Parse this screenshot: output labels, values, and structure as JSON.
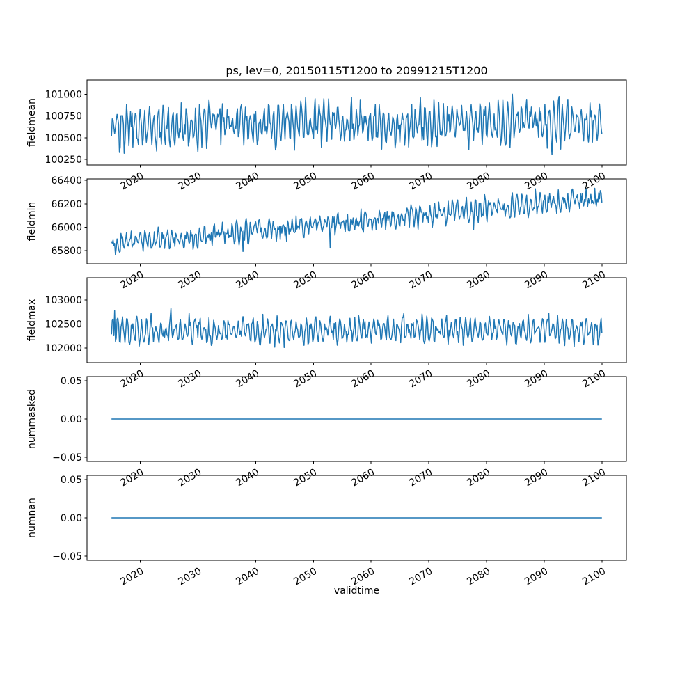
{
  "figure": {
    "title": "ps, lev=0, 20150115T1200 to 20991215T1200",
    "xlabel": "validtime",
    "line_color": "#1f77b4",
    "background": "#ffffff"
  },
  "chart_data": [
    {
      "type": "line",
      "ylabel": "fieldmean",
      "x_start": 2015.04,
      "x_end": 2099.96,
      "xlim": [
        2010.8,
        2104.2
      ],
      "xticks": [
        2020,
        2030,
        2040,
        2050,
        2060,
        2070,
        2080,
        2090,
        2100
      ],
      "xtick_labels": [
        "2020",
        "2030",
        "2040",
        "2050",
        "2060",
        "2070",
        "2080",
        "2090",
        "2100"
      ],
      "ylim": [
        100185,
        101165
      ],
      "yticks": [
        100250,
        100500,
        100750,
        101000
      ],
      "ytick_labels": [
        "100250",
        "100500",
        "100750",
        "101000"
      ],
      "grid": false,
      "legend": "none",
      "series": {
        "name": "fieldmean",
        "description": "stationary noisy series oscillating roughly 100250-101000, occasional dips to ~100230 and peaks to ~101120",
        "gen": {
          "kind": "noisy",
          "n": 620,
          "base": 100630,
          "trend": 40,
          "seasonal_amp": 215,
          "seasonal_period": 5.8,
          "noise_amp": 135,
          "spike_prob": 0.012,
          "spike_amp": 330,
          "spike_up_frac": 0.5,
          "clamp": [
            100200,
            101150
          ],
          "seed": 11
        }
      }
    },
    {
      "type": "line",
      "ylabel": "fieldmin",
      "x_start": 2015.04,
      "x_end": 2099.96,
      "xlim": [
        2010.8,
        2104.2
      ],
      "xticks": [
        2020,
        2030,
        2040,
        2050,
        2060,
        2070,
        2080,
        2090,
        2100
      ],
      "xtick_labels": [
        "2020",
        "2030",
        "2040",
        "2050",
        "2060",
        "2070",
        "2080",
        "2090",
        "2100"
      ],
      "ylim": [
        65687,
        66413
      ],
      "yticks": [
        65800,
        66000,
        66200,
        66400
      ],
      "ytick_labels": [
        "65800",
        "66000",
        "66200",
        "66400"
      ],
      "grid": false,
      "legend": "none",
      "series": {
        "name": "fieldmin",
        "description": "noisy series with steady upward trend from ~65850 in 2015 to ~66280 in 2100, peaks near 66400 at the end",
        "gen": {
          "kind": "noisy",
          "n": 620,
          "base": 65850,
          "trend": 400,
          "seasonal_amp": 70,
          "seasonal_period": 5.8,
          "noise_amp": 62,
          "spike_prob": 0.01,
          "spike_amp": 160,
          "spike_up_frac": 0.35,
          "clamp": [
            65700,
            66400
          ],
          "seed": 22
        }
      }
    },
    {
      "type": "line",
      "ylabel": "fieldmax",
      "x_start": 2015.04,
      "x_end": 2099.96,
      "xlim": [
        2010.8,
        2104.2
      ],
      "xticks": [
        2020,
        2030,
        2040,
        2050,
        2060,
        2070,
        2080,
        2090,
        2100
      ],
      "xtick_labels": [
        "2020",
        "2030",
        "2040",
        "2050",
        "2060",
        "2070",
        "2080",
        "2090",
        "2100"
      ],
      "ylim": [
        101700,
        103460
      ],
      "yticks": [
        102000,
        102500,
        103000
      ],
      "ytick_labels": [
        "102000",
        "102500",
        "103000"
      ],
      "grid": false,
      "legend": "none",
      "series": {
        "name": "fieldmax",
        "description": "stationary noisy series oscillating roughly 102000-102800 with occasional upward spikes to ~103350",
        "gen": {
          "kind": "noisy",
          "n": 620,
          "base": 102360,
          "trend": 20,
          "seasonal_amp": 235,
          "seasonal_period": 6.1,
          "noise_amp": 140,
          "spike_prob": 0.012,
          "spike_amp": 480,
          "spike_up_frac": 0.85,
          "clamp": [
            101720,
            103440
          ],
          "seed": 33
        }
      }
    },
    {
      "type": "line",
      "ylabel": "nummasked",
      "x_start": 2015.04,
      "x_end": 2099.96,
      "xlim": [
        2010.8,
        2104.2
      ],
      "xticks": [
        2020,
        2030,
        2040,
        2050,
        2060,
        2070,
        2080,
        2090,
        2100
      ],
      "xtick_labels": [
        "2020",
        "2030",
        "2040",
        "2050",
        "2060",
        "2070",
        "2080",
        "2090",
        "2100"
      ],
      "ylim": [
        -0.0556,
        0.0556
      ],
      "yticks": [
        -0.05,
        0,
        0.05
      ],
      "ytick_labels": [
        "−0.05",
        "0.00",
        "0.05"
      ],
      "grid": false,
      "legend": "none",
      "series": {
        "name": "nummasked",
        "description": "constant zero for the whole period",
        "gen": {
          "kind": "constant",
          "value": 0
        }
      }
    },
    {
      "type": "line",
      "ylabel": "numnan",
      "x_start": 2015.04,
      "x_end": 2099.96,
      "xlim": [
        2010.8,
        2104.2
      ],
      "xticks": [
        2020,
        2030,
        2040,
        2050,
        2060,
        2070,
        2080,
        2090,
        2100
      ],
      "xtick_labels": [
        "2020",
        "2030",
        "2040",
        "2050",
        "2060",
        "2070",
        "2080",
        "2090",
        "2100"
      ],
      "ylim": [
        -0.0556,
        0.0556
      ],
      "yticks": [
        -0.05,
        0,
        0.05
      ],
      "ytick_labels": [
        "−0.05",
        "0.00",
        "0.05"
      ],
      "grid": false,
      "legend": "none",
      "series": {
        "name": "numnan",
        "description": "constant zero for the whole period",
        "gen": {
          "kind": "constant",
          "value": 0
        }
      }
    }
  ]
}
